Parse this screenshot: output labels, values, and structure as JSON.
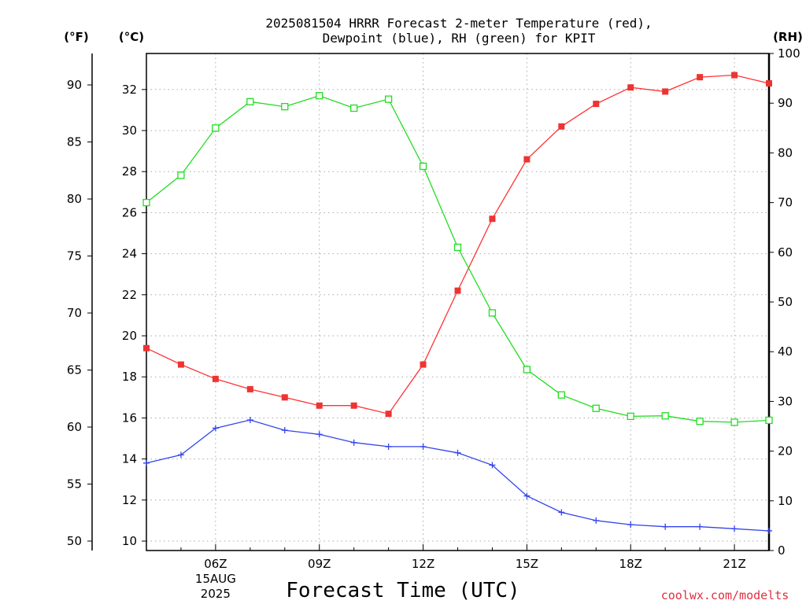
{
  "title_line1": "2025081504 HRRR Forecast 2-meter Temperature (red),",
  "title_line2": "Dewpoint (blue), RH (green) for KPIT",
  "units": {
    "fahrenheit": "(°F)",
    "celsius": "(°C)",
    "rh": "(RH)"
  },
  "credit": "coolwx.com/modelts",
  "colors": {
    "temperature": "#ff3333",
    "dewpoint": "#3344ee",
    "rh": "#22dd22",
    "temp_marker": "#ee3333"
  },
  "chart_data": {
    "type": "line",
    "title": "2025081504 HRRR Forecast 2-meter Temperature (red), Dewpoint (blue), RH (green) for KPIT",
    "xlabel": "Forecast Time (UTC)",
    "x_hours": [
      4,
      5,
      6,
      7,
      8,
      9,
      10,
      11,
      12,
      13,
      14,
      15,
      16,
      17,
      18,
      19,
      20,
      21,
      22
    ],
    "xlim": [
      4,
      22
    ],
    "x_ticks": [
      {
        "hour": 6,
        "label": "06Z",
        "sub1": "15AUG",
        "sub2": "2025"
      },
      {
        "hour": 9,
        "label": "09Z"
      },
      {
        "hour": 12,
        "label": "12Z"
      },
      {
        "hour": 15,
        "label": "15Z"
      },
      {
        "hour": 18,
        "label": "18Z"
      },
      {
        "hour": 21,
        "label": "21Z"
      }
    ],
    "y_left_celsius": {
      "ylim": [
        9.5,
        33.8
      ],
      "ticks": [
        "10",
        "12",
        "14",
        "16",
        "18",
        "20",
        "22",
        "24",
        "26",
        "28",
        "30",
        "32"
      ]
    },
    "y_left_fahrenheit": {
      "ticks": [
        "50",
        "55",
        "60",
        "65",
        "70",
        "75",
        "80",
        "85",
        "90"
      ]
    },
    "y_right_rh": {
      "ylim": [
        0,
        100
      ],
      "ticks": [
        "0",
        "10",
        "20",
        "30",
        "40",
        "50",
        "60",
        "70",
        "80",
        "90",
        "100"
      ]
    },
    "grid": true,
    "series": [
      {
        "key": "temperature",
        "unit": "C",
        "marker": "filled-square",
        "values": [
          19.4,
          18.6,
          17.9,
          17.4,
          17.0,
          16.6,
          16.6,
          16.2,
          18.6,
          22.2,
          25.7,
          28.6,
          30.2,
          31.3,
          32.1,
          31.9,
          32.6,
          32.7,
          32.3
        ]
      },
      {
        "key": "dewpoint",
        "unit": "C",
        "marker": "plus",
        "values": [
          13.8,
          14.2,
          15.5,
          15.9,
          15.4,
          15.2,
          14.8,
          14.6,
          14.6,
          14.3,
          13.7,
          12.2,
          11.4,
          11.0,
          10.8,
          10.7,
          10.7,
          10.6,
          10.5
        ]
      },
      {
        "key": "rh",
        "unit": "%",
        "marker": "open-square",
        "values": [
          70,
          75.5,
          85,
          90.3,
          89.3,
          91.5,
          89,
          90.8,
          77.3,
          61,
          47.8,
          36.4,
          31.3,
          28.6,
          27,
          27.1,
          26,
          25.8,
          26.2
        ]
      }
    ]
  }
}
